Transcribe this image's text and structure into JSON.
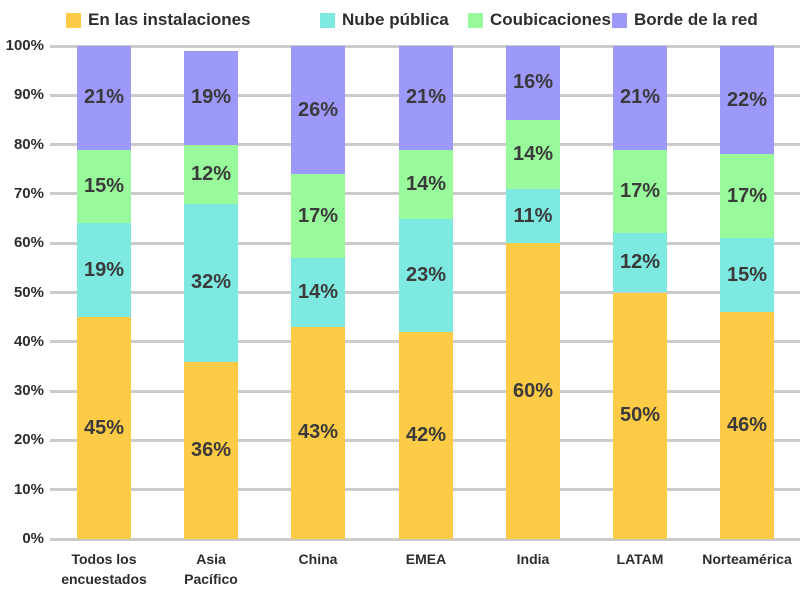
{
  "chart_data": {
    "type": "bar",
    "stacked": true,
    "title": "",
    "xlabel": "",
    "ylabel": "",
    "ylim": [
      0,
      100
    ],
    "grid": true,
    "legend_position": "top",
    "value_suffix": "%",
    "y_ticks": [
      "0%",
      "10%",
      "20%",
      "30%",
      "40%",
      "50%",
      "60%",
      "70%",
      "80%",
      "90%",
      "100%"
    ],
    "categories": [
      "Todos los\nencuestados",
      "Asia\nPacífico",
      "China",
      "EMEA",
      "India",
      "LATAM",
      "Norteamérica"
    ],
    "series": [
      {
        "name": "En las instalaciones",
        "color": "#fecb46",
        "values": [
          45,
          36,
          43,
          42,
          60,
          50,
          46
        ]
      },
      {
        "name": "Nube pública",
        "color": "#7ee9e0",
        "values": [
          19,
          32,
          14,
          23,
          11,
          12,
          15
        ]
      },
      {
        "name": "Coubicaciones",
        "color": "#98fa9a",
        "values": [
          15,
          12,
          17,
          14,
          14,
          17,
          17
        ]
      },
      {
        "name": "Borde de la red",
        "color": "#9c99fa",
        "values": [
          21,
          19,
          26,
          21,
          16,
          21,
          22
        ]
      }
    ]
  },
  "colors": {
    "gridline": "#cbcbcb",
    "axis_text": "#2d2d2d",
    "segment_label_text": "#3a3a3a"
  }
}
